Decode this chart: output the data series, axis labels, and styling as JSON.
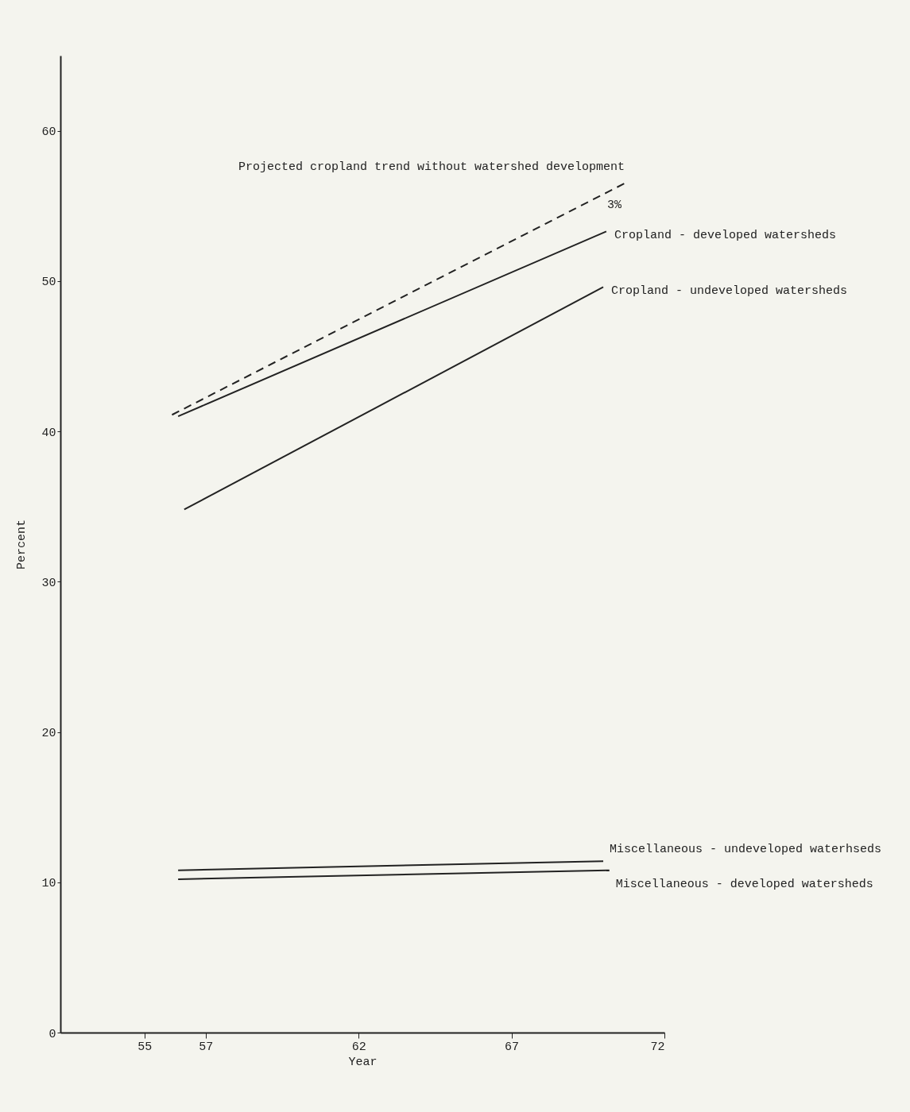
{
  "chart_data": {
    "type": "line",
    "xlabel": "Year",
    "ylabel": "Percent",
    "xlim": [
      52.25,
      72
    ],
    "ylim": [
      0,
      65
    ],
    "xticks": [
      55,
      57,
      62,
      67,
      72
    ],
    "yticks": [
      0,
      10,
      20,
      30,
      40,
      50,
      60
    ],
    "grid": false,
    "marker": "none",
    "series": [
      {
        "name": "Projected cropland trend without watershed development",
        "color": "#222222",
        "line_style": "dashed",
        "x": [
          55.9,
          70.7
        ],
        "values": [
          41.1,
          56.5
        ]
      },
      {
        "name": "Cropland - developed watersheds",
        "color": "#222222",
        "line_style": "solid",
        "x": [
          56.1,
          70.1
        ],
        "values": [
          41.0,
          53.3
        ]
      },
      {
        "name": "Cropland - undeveloped watersheds",
        "color": "#222222",
        "line_style": "solid",
        "x": [
          56.3,
          70.0
        ],
        "values": [
          34.8,
          49.6
        ]
      },
      {
        "name": "Miscellaneous - undeveloped waterhseds",
        "color": "#222222",
        "line_style": "solid",
        "x": [
          56.1,
          70.0
        ],
        "values": [
          10.8,
          11.4
        ]
      },
      {
        "name": "Miscellaneous - developed watersheds",
        "color": "#222222",
        "line_style": "solid",
        "x": [
          56.1,
          70.2
        ],
        "values": [
          10.2,
          10.8
        ]
      }
    ],
    "annotations": [
      "3%"
    ]
  }
}
